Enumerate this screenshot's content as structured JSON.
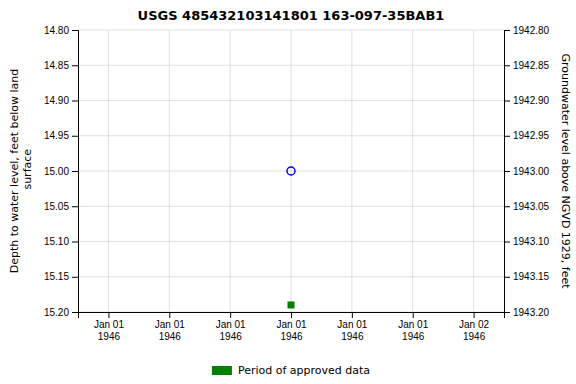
{
  "chart_data": {
    "type": "scatter",
    "title": "USGS 485432103141801 163-097-35BAB1",
    "y_label": "Depth to water level, feet below land\n surface",
    "y2_label": "Groundwater level above NGVD 1929, feet",
    "categories": [
      "Jan 01\n1946",
      "Jan 01\n1946",
      "Jan 01\n1946",
      "Jan 01\n1946",
      "Jan 01\n1946",
      "Jan 01\n1946",
      "Jan 02\n1946"
    ],
    "series": [
      {
        "color": "#0000ff",
        "marker": "circle",
        "values": [
          null,
          null,
          null,
          15.0,
          null,
          null,
          null
        ]
      },
      {
        "name": "Period of approved data",
        "color": "#008000",
        "marker": "square",
        "values": [
          null,
          null,
          null,
          15.19,
          null,
          null,
          null
        ]
      }
    ],
    "ylim": [
      15.2,
      14.8
    ],
    "yticks": [
      {
        "value": 14.8,
        "label": "14.80"
      },
      14.85,
      {
        "value": 14.9,
        "label": "14.90"
      },
      14.95,
      {
        "value": 15.0,
        "label": "15.00"
      },
      15.05,
      {
        "value": 15.1,
        "label": "15.10"
      },
      15.15,
      {
        "value": 15.2,
        "label": "15.20"
      }
    ],
    "y2lim": [
      1943.2,
      1942.8
    ],
    "y2ticks": [
      {
        "value": 1943.2,
        "label": "1943.20"
      },
      1943.15,
      {
        "value": 1943.1,
        "label": "1943.10"
      },
      1943.05,
      {
        "value": 1943.0,
        "label": "1943.00"
      },
      1942.95,
      {
        "value": 1942.9,
        "label": "1942.90"
      },
      1942.85,
      {
        "value": 1942.8,
        "label": "1942.80"
      }
    ],
    "grid": true
  }
}
